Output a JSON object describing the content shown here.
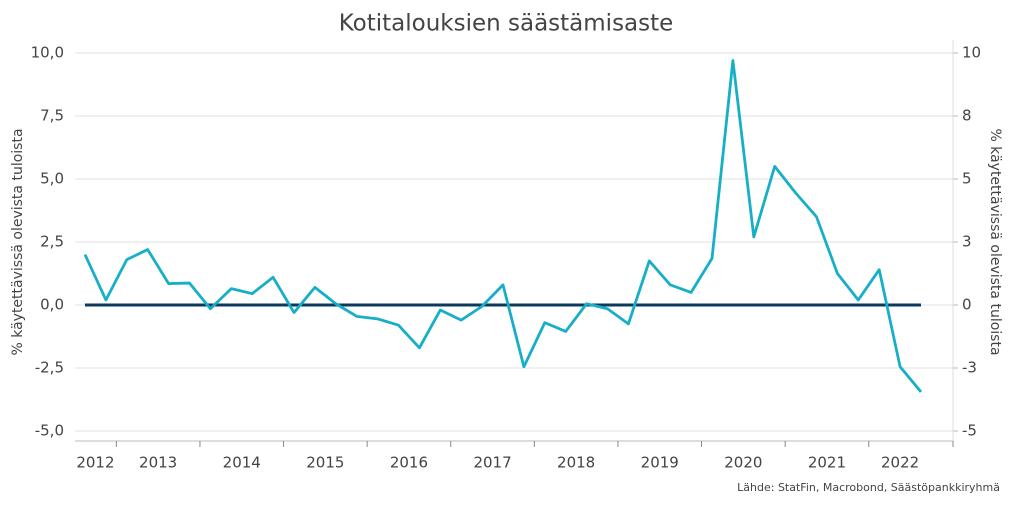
{
  "chart_data": {
    "type": "line",
    "title": "Kotitalouksien säästämisaste",
    "y_label": "% käytettävissä olevista tuloista",
    "y2_label": "% käytettävissä olevista tuloista",
    "source": "Lähde: StatFin, Macrobond, Säästöpankkiryhmä",
    "categories": [
      "2012",
      "2012",
      "2013",
      "2013",
      "2013",
      "2013",
      "2014",
      "2014",
      "2014",
      "2014",
      "2015",
      "2015",
      "2015",
      "2015",
      "2016",
      "2016",
      "2016",
      "2016",
      "2017",
      "2017",
      "2017",
      "2017",
      "2018",
      "2018",
      "2018",
      "2018",
      "2019",
      "2019",
      "2019",
      "2019",
      "2020",
      "2020",
      "2020",
      "2020",
      "2021",
      "2021",
      "2021",
      "2021",
      "2022",
      "2022",
      "2022"
    ],
    "series": [
      {
        "color": "#17afc7",
        "values": [
          2.0,
          0.2,
          1.8,
          2.2,
          0.85,
          0.87,
          -0.15,
          0.65,
          0.45,
          1.1,
          -0.3,
          0.7,
          0.05,
          -0.45,
          -0.55,
          -0.8,
          -1.7,
          -0.2,
          -0.6,
          -0.05,
          0.8,
          -2.45,
          -0.7,
          -1.05,
          0.05,
          -0.15,
          -0.75,
          1.75,
          0.8,
          0.5,
          1.85,
          9.7,
          2.7,
          5.5,
          4.45,
          3.5,
          1.25,
          0.2,
          1.4,
          -2.45,
          -3.45
        ]
      }
    ],
    "reference_line": 0,
    "reference_color": "#0b3a5c",
    "ylim": [
      -5,
      10
    ],
    "yticks": [
      {
        "value": -5,
        "label": "-5,0"
      },
      {
        "value": -2.5,
        "label": "-2,5"
      },
      {
        "value": 0,
        "label": "0,0"
      },
      {
        "value": 2.5,
        "label": "2,5"
      },
      {
        "value": 5,
        "label": "5,0"
      },
      {
        "value": 7.5,
        "label": "7,5"
      },
      {
        "value": 10,
        "label": "10,0"
      }
    ],
    "y2lim": [
      -5,
      10
    ],
    "y2ticks": [
      -5,
      {
        "value": -2.5,
        "label": "-3"
      },
      0,
      {
        "value": 2.5,
        "label": "3"
      },
      5,
      {
        "value": 7.5,
        "label": "8"
      },
      10
    ],
    "grid": true
  }
}
